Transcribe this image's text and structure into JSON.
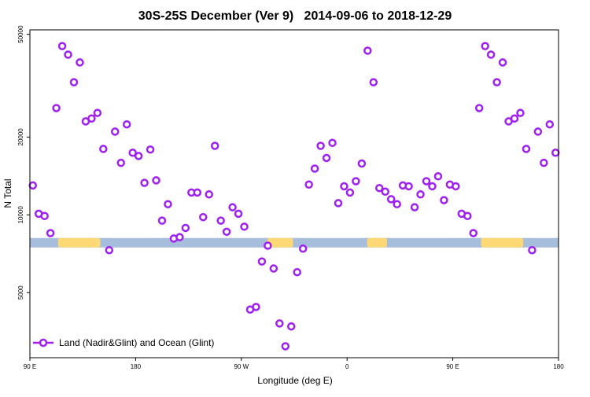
{
  "chart_data": {
    "type": "scatter",
    "title": "30S-25S December (Ver 9)   2014-09-06 to 2018-12-29",
    "xlabel": "Longitude (deg E)",
    "ylabel": "N Total",
    "yscale": "log",
    "xlim": [
      90,
      540
    ],
    "ylim": [
      2800,
      52000
    ],
    "x_ticks": [
      {
        "value": 90,
        "label": "90 E"
      },
      {
        "value": 180,
        "label": "180"
      },
      {
        "value": 270,
        "label": "90 W"
      },
      {
        "value": 360,
        "label": "0"
      },
      {
        "value": 450,
        "label": "90 E"
      },
      {
        "value": 540,
        "label": "180"
      }
    ],
    "y_ticks": [
      {
        "value": 5000,
        "label": "5000"
      },
      {
        "value": 10000,
        "label": "10000"
      },
      {
        "value": 20000,
        "label": "20000"
      },
      {
        "value": 50000,
        "label": "50000"
      }
    ],
    "legend": {
      "position": "bottom-left",
      "entries": [
        {
          "label": "Land (Nadir&Glint) and Ocean (Glint)",
          "color": "#a020f0",
          "marker": "open-circle"
        }
      ]
    },
    "land_band": {
      "value": 7800,
      "ocean_color": "#a6bddb",
      "land_color": "#fdd976",
      "land_segments_deg": [
        [
          114,
          150
        ],
        [
          292,
          314
        ],
        [
          377,
          394
        ],
        [
          474,
          510
        ],
        [
          500,
          501
        ]
      ]
    },
    "series": [
      {
        "name": "Land (Nadir&Glint) and Ocean (Glint)",
        "color": "#a020f0",
        "x_start": 92.5,
        "x_step": 5,
        "values": [
          13000,
          10100,
          9900,
          8500,
          25900,
          45000,
          41700,
          32600,
          38900,
          23000,
          23600,
          24800,
          18000,
          7300,
          21000,
          15900,
          22400,
          17400,
          16900,
          13300,
          17900,
          13600,
          9500,
          11000,
          8100,
          8200,
          8900,
          12200,
          12200,
          9800,
          12000,
          18500,
          9500,
          8600,
          10700,
          10100,
          9000,
          4300,
          4400,
          6600,
          7600,
          6200,
          3800,
          3100,
          3700,
          6000,
          7400,
          13100,
          15100,
          18500,
          16600,
          19000,
          11100,
          12900,
          12200,
          13500,
          15800,
          43200,
          32600,
          12700,
          12300,
          11500,
          11000,
          13000,
          12900,
          10700,
          12000,
          13500,
          12900,
          14100,
          11400,
          13100,
          12900,
          10100,
          9900,
          8500,
          25900,
          45000,
          41700,
          32600,
          38900,
          23000,
          23600,
          24800,
          18000,
          7300,
          21000,
          15900,
          22400,
          17400
        ]
      }
    ]
  }
}
